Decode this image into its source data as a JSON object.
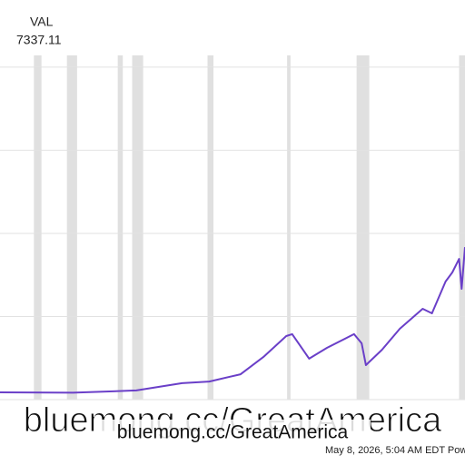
{
  "chart_data": {
    "type": "line",
    "series_label": "VAL",
    "last_value_label": "7337.11",
    "watermark": "bluemong.cc/GreatAmerica",
    "footer": "May 8, 2026, 5:04 AM EDT Pow",
    "x": [
      1965.6,
      1974.2,
      1981.7,
      1987.1,
      1990.3,
      1994.0,
      1996.7,
      1999.4,
      2000.1,
      2002.1,
      2004.2,
      2007.4,
      2008.3,
      2008.8,
      2010.7,
      2012.8,
      2015.5,
      2016.6,
      2018.2,
      2019.0,
      2019.8,
      2020.1,
      2020.5
    ],
    "series": [
      {
        "name": "VAL",
        "color": "#6a3fc8",
        "values": [
          350,
          330,
          440,
          790,
          870,
          1220,
          2050,
          3060,
          3150,
          1970,
          2490,
          3150,
          2710,
          1660,
          2400,
          3410,
          4370,
          4150,
          5680,
          6120,
          6770,
          5330,
          7337.11
        ]
      }
    ],
    "recessions": [
      [
        1969.6,
        1970.5
      ],
      [
        1973.5,
        1974.7
      ],
      [
        1979.5,
        1980.1
      ],
      [
        1981.2,
        1982.5
      ],
      [
        1990.1,
        1990.8
      ],
      [
        1999.5,
        1999.9
      ],
      [
        2007.7,
        2009.2
      ],
      [
        2019.8,
        2020.5
      ]
    ],
    "recession_color": "#e0e0e0",
    "xlim": [
      1965.6,
      2020.5
    ],
    "ylim": [
      0,
      17000
    ],
    "yticks": [
      0,
      4000,
      8000,
      12000,
      16000
    ],
    "grid": true
  }
}
